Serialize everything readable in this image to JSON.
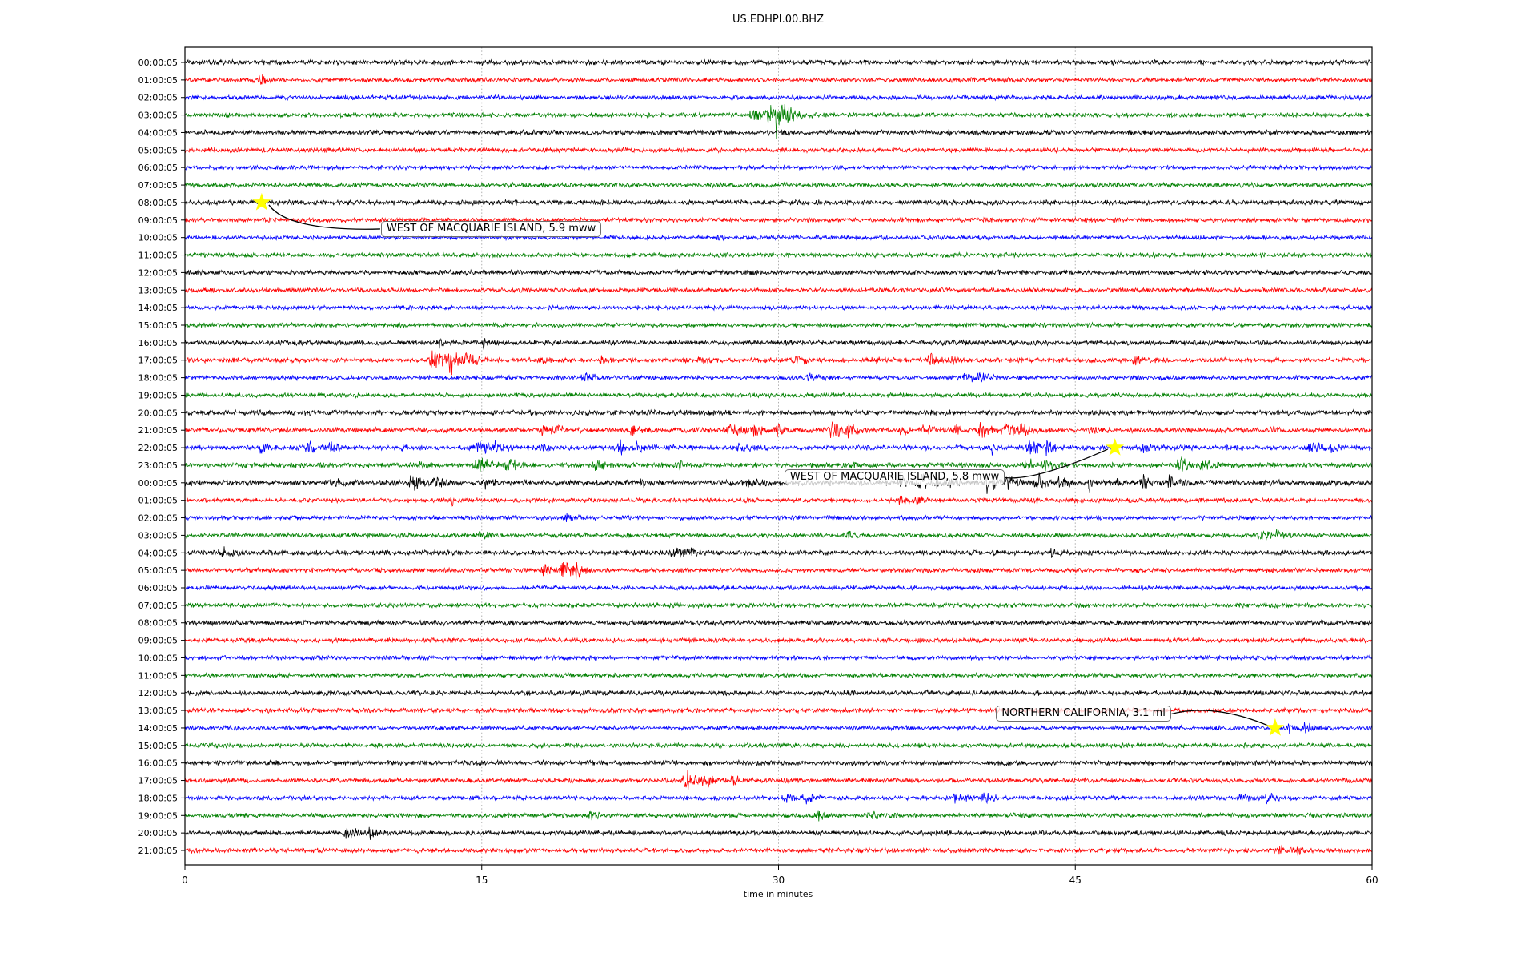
{
  "chart_data": {
    "type": "line",
    "variant": "helicorder-dayplot-seismogram",
    "title": "US.EDHPI.00.BHZ",
    "xlabel": "time in minutes",
    "x_range": [
      0,
      60
    ],
    "x_ticks": [
      0,
      15,
      30,
      45,
      60
    ],
    "grid": {
      "vertical_dotted_at": [
        15,
        30,
        45
      ],
      "color": "#b0b0b0"
    },
    "legend": "none",
    "trace_color_cycle": [
      "#000000",
      "#ff0000",
      "#0000ff",
      "#008000"
    ],
    "star_color": "#ffff00",
    "rows": [
      {
        "label": "00:00:05",
        "color": "#000000",
        "base": 2.4,
        "bursts": []
      },
      {
        "label": "01:00:05",
        "color": "#ff0000",
        "base": 2.2,
        "bursts": [
          {
            "m": 3.8,
            "a": 5,
            "d": 0.25
          }
        ]
      },
      {
        "label": "02:00:05",
        "color": "#0000ff",
        "base": 2.1,
        "bursts": []
      },
      {
        "label": "03:00:05",
        "color": "#008000",
        "base": 2.2,
        "bursts": [
          {
            "m": 28.8,
            "a": 7,
            "d": 0.5
          },
          {
            "m": 29.6,
            "a": 13,
            "d": 0.35
          },
          {
            "m": 29.9,
            "a": 22,
            "d": 0.06
          },
          {
            "m": 30.4,
            "a": 9,
            "d": 0.5
          }
        ]
      },
      {
        "label": "04:00:05",
        "color": "#000000",
        "base": 2.4,
        "bursts": [
          {
            "m": 38.6,
            "a": 6,
            "d": 0.05
          }
        ]
      },
      {
        "label": "05:00:05",
        "color": "#ff0000",
        "base": 2.2,
        "bursts": []
      },
      {
        "label": "06:00:05",
        "color": "#0000ff",
        "base": 2.1,
        "bursts": []
      },
      {
        "label": "07:00:05",
        "color": "#008000",
        "base": 2.2,
        "bursts": []
      },
      {
        "label": "08:00:05",
        "color": "#000000",
        "base": 2.4,
        "bursts": []
      },
      {
        "label": "09:00:05",
        "color": "#ff0000",
        "base": 2.2,
        "bursts": []
      },
      {
        "label": "10:00:05",
        "color": "#0000ff",
        "base": 2.1,
        "bursts": [
          {
            "m": 27.0,
            "a": 4,
            "d": 0.12
          }
        ]
      },
      {
        "label": "11:00:05",
        "color": "#008000",
        "base": 2.2,
        "bursts": []
      },
      {
        "label": "12:00:05",
        "color": "#000000",
        "base": 2.4,
        "bursts": []
      },
      {
        "label": "13:00:05",
        "color": "#ff0000",
        "base": 2.2,
        "bursts": []
      },
      {
        "label": "14:00:05",
        "color": "#0000ff",
        "base": 2.1,
        "bursts": []
      },
      {
        "label": "15:00:05",
        "color": "#008000",
        "base": 2.2,
        "bursts": []
      },
      {
        "label": "16:00:05",
        "color": "#000000",
        "base": 2.4,
        "bursts": [
          {
            "m": 12.9,
            "a": 3.5,
            "d": 0.2
          },
          {
            "m": 15.1,
            "a": 4,
            "d": 0.25
          }
        ]
      },
      {
        "label": "17:00:05",
        "color": "#ff0000",
        "base": 2.3,
        "bursts": [
          {
            "m": 12.6,
            "a": 9,
            "d": 0.5
          },
          {
            "m": 13.4,
            "a": 12,
            "d": 0.3
          },
          {
            "m": 14.3,
            "a": 7,
            "d": 0.4
          },
          {
            "m": 18,
            "a": 3,
            "d": 0.3
          },
          {
            "m": 21,
            "a": 3.5,
            "d": 0.25
          },
          {
            "m": 26,
            "a": 3,
            "d": 0.3
          },
          {
            "m": 31,
            "a": 5,
            "d": 0.35
          },
          {
            "m": 34.9,
            "a": 4,
            "d": 0.3
          },
          {
            "m": 37.7,
            "a": 5,
            "d": 0.35
          },
          {
            "m": 38.8,
            "a": 4,
            "d": 0.2
          },
          {
            "m": 48,
            "a": 4.5,
            "d": 0.3
          }
        ]
      },
      {
        "label": "18:00:05",
        "color": "#0000ff",
        "base": 2.1,
        "bursts": [
          {
            "m": 20.2,
            "a": 4.5,
            "d": 0.4
          },
          {
            "m": 31.6,
            "a": 4,
            "d": 0.3
          },
          {
            "m": 39.5,
            "a": 5.5,
            "d": 0.5
          },
          {
            "m": 40.3,
            "a": 4.5,
            "d": 0.3
          }
        ]
      },
      {
        "label": "19:00:05",
        "color": "#008000",
        "base": 2.2,
        "bursts": []
      },
      {
        "label": "20:00:05",
        "color": "#000000",
        "base": 2.5,
        "bursts": []
      },
      {
        "label": "21:00:05",
        "color": "#ff0000",
        "base": 2.5,
        "bursts": [
          {
            "m": 18.1,
            "a": 6,
            "d": 0.3
          },
          {
            "m": 18.8,
            "a": 4,
            "d": 0.25
          },
          {
            "m": 22.6,
            "a": 5,
            "d": 0.25
          },
          {
            "m": 27.6,
            "a": 6,
            "d": 0.5
          },
          {
            "m": 28.8,
            "a": 5,
            "d": 0.4
          },
          {
            "m": 30,
            "a": 4,
            "d": 0.3
          },
          {
            "m": 32.8,
            "a": 7,
            "d": 0.5
          },
          {
            "m": 33.6,
            "a": 5,
            "d": 0.3
          },
          {
            "m": 36.3,
            "a": 5,
            "d": 0.4
          },
          {
            "m": 37.5,
            "a": 6,
            "d": 0.45
          },
          {
            "m": 38.9,
            "a": 5,
            "d": 0.3
          },
          {
            "m": 40.3,
            "a": 6,
            "d": 0.5
          },
          {
            "m": 41.5,
            "a": 6,
            "d": 0.4
          },
          {
            "m": 42.3,
            "a": 5,
            "d": 0.3
          },
          {
            "m": 45.8,
            "a": 4,
            "d": 0.3
          },
          {
            "m": 55,
            "a": 3,
            "d": 0.3
          }
        ]
      },
      {
        "label": "22:00:05",
        "color": "#0000ff",
        "base": 2.4,
        "bursts": [
          {
            "m": 3.9,
            "a": 4,
            "d": 0.3
          },
          {
            "m": 6.3,
            "a": 5,
            "d": 0.5
          },
          {
            "m": 7.4,
            "a": 4,
            "d": 0.3
          },
          {
            "m": 11,
            "a": 5,
            "d": 0.15
          },
          {
            "m": 14.8,
            "a": 6,
            "d": 0.5
          },
          {
            "m": 15.7,
            "a": 5,
            "d": 0.3
          },
          {
            "m": 18.1,
            "a": 4,
            "d": 0.3
          },
          {
            "m": 22,
            "a": 5.5,
            "d": 0.4
          },
          {
            "m": 22.9,
            "a": 4,
            "d": 0.25
          },
          {
            "m": 28.1,
            "a": 5,
            "d": 0.3
          },
          {
            "m": 36.4,
            "a": 9,
            "d": 0.08
          },
          {
            "m": 40.8,
            "a": 6,
            "d": 0.1
          },
          {
            "m": 42.8,
            "a": 7,
            "d": 0.4
          },
          {
            "m": 43.6,
            "a": 6,
            "d": 0.3
          },
          {
            "m": 48.5,
            "a": 4,
            "d": 0.4
          },
          {
            "m": 57,
            "a": 5,
            "d": 0.4
          },
          {
            "m": 58,
            "a": 4,
            "d": 0.3
          }
        ]
      },
      {
        "label": "23:00:05",
        "color": "#008000",
        "base": 2.4,
        "bursts": [
          {
            "m": 12,
            "a": 4,
            "d": 0.3
          },
          {
            "m": 14.9,
            "a": 6,
            "d": 0.5
          },
          {
            "m": 16.4,
            "a": 6,
            "d": 0.4
          },
          {
            "m": 20.8,
            "a": 5,
            "d": 0.3
          },
          {
            "m": 25,
            "a": 4,
            "d": 0.3
          },
          {
            "m": 33.4,
            "a": 4,
            "d": 0.3
          },
          {
            "m": 42.6,
            "a": 6,
            "d": 0.4
          },
          {
            "m": 43.5,
            "a": 5,
            "d": 0.3
          },
          {
            "m": 50.3,
            "a": 12,
            "d": 0.25
          },
          {
            "m": 51.5,
            "a": 6,
            "d": 0.4
          }
        ]
      },
      {
        "label": "00:00:05",
        "color": "#000000",
        "base": 2.7,
        "bursts": [
          {
            "m": 7.5,
            "a": 5,
            "d": 0.3
          },
          {
            "m": 11.5,
            "a": 6,
            "d": 0.4
          },
          {
            "m": 12.7,
            "a": 5,
            "d": 0.3
          },
          {
            "m": 15.1,
            "a": 6,
            "d": 0.3
          },
          {
            "m": 23,
            "a": 5,
            "d": 0.25
          },
          {
            "m": 28.6,
            "a": 5,
            "d": 0.3
          },
          {
            "m": 36.2,
            "a": 8,
            "d": 0.25
          },
          {
            "m": 37.2,
            "a": 9,
            "d": 0.3
          },
          {
            "m": 38,
            "a": 16,
            "d": 0.05
          },
          {
            "m": 38.6,
            "a": 7,
            "d": 0.3
          },
          {
            "m": 40.6,
            "a": 9,
            "d": 0.35
          },
          {
            "m": 41.7,
            "a": 7,
            "d": 0.3
          },
          {
            "m": 43.1,
            "a": 9,
            "d": 0.4
          },
          {
            "m": 44.2,
            "a": 6,
            "d": 0.3
          },
          {
            "m": 45.7,
            "a": 14,
            "d": 0.07
          },
          {
            "m": 47.1,
            "a": 12,
            "d": 0.08
          },
          {
            "m": 48.4,
            "a": 8,
            "d": 0.25
          },
          {
            "m": 49.8,
            "a": 6,
            "d": 0.3
          }
        ]
      },
      {
        "label": "01:00:05",
        "color": "#ff0000",
        "base": 2.2,
        "bursts": [
          {
            "m": 13.5,
            "a": 6,
            "d": 0.08
          },
          {
            "m": 36.2,
            "a": 7,
            "d": 0.3
          },
          {
            "m": 37,
            "a": 5,
            "d": 0.25
          },
          {
            "m": 43,
            "a": 4,
            "d": 0.15
          }
        ]
      },
      {
        "label": "02:00:05",
        "color": "#0000ff",
        "base": 2.1,
        "bursts": [
          {
            "m": 19.3,
            "a": 4,
            "d": 0.25
          }
        ]
      },
      {
        "label": "03:00:05",
        "color": "#008000",
        "base": 2.2,
        "bursts": [
          {
            "m": 15,
            "a": 4,
            "d": 0.3
          },
          {
            "m": 33.4,
            "a": 3.5,
            "d": 0.3
          },
          {
            "m": 54.3,
            "a": 4.5,
            "d": 0.5
          },
          {
            "m": 55.2,
            "a": 4,
            "d": 0.3
          }
        ]
      },
      {
        "label": "04:00:05",
        "color": "#000000",
        "base": 2.4,
        "bursts": [
          {
            "m": 2,
            "a": 4,
            "d": 0.5
          },
          {
            "m": 24.8,
            "a": 4,
            "d": 0.5
          },
          {
            "m": 25.6,
            "a": 3.5,
            "d": 0.3
          },
          {
            "m": 43.8,
            "a": 3.5,
            "d": 0.3
          }
        ]
      },
      {
        "label": "05:00:05",
        "color": "#ff0000",
        "base": 2.2,
        "bursts": [
          {
            "m": 18.2,
            "a": 5,
            "d": 0.3
          },
          {
            "m": 19.2,
            "a": 8,
            "d": 0.4
          },
          {
            "m": 19.8,
            "a": 5,
            "d": 0.3
          }
        ]
      },
      {
        "label": "06:00:05",
        "color": "#0000ff",
        "base": 2.1,
        "bursts": []
      },
      {
        "label": "07:00:05",
        "color": "#008000",
        "base": 2.2,
        "bursts": []
      },
      {
        "label": "08:00:05",
        "color": "#000000",
        "base": 2.4,
        "bursts": []
      },
      {
        "label": "09:00:05",
        "color": "#ff0000",
        "base": 2.2,
        "bursts": []
      },
      {
        "label": "10:00:05",
        "color": "#0000ff",
        "base": 2.1,
        "bursts": []
      },
      {
        "label": "11:00:05",
        "color": "#008000",
        "base": 2.2,
        "bursts": []
      },
      {
        "label": "12:00:05",
        "color": "#000000",
        "base": 2.4,
        "bursts": []
      },
      {
        "label": "13:00:05",
        "color": "#ff0000",
        "base": 2.2,
        "bursts": []
      },
      {
        "label": "14:00:05",
        "color": "#0000ff",
        "base": 2.1,
        "bursts": [
          {
            "m": 55.9,
            "a": 7,
            "d": 0.4
          },
          {
            "m": 56.6,
            "a": 5,
            "d": 0.3
          }
        ]
      },
      {
        "label": "15:00:05",
        "color": "#008000",
        "base": 2.2,
        "bursts": []
      },
      {
        "label": "16:00:05",
        "color": "#000000",
        "base": 2.4,
        "bursts": []
      },
      {
        "label": "17:00:05",
        "color": "#ff0000",
        "base": 2.2,
        "bursts": [
          {
            "m": 25.4,
            "a": 8,
            "d": 0.4
          },
          {
            "m": 26.3,
            "a": 6,
            "d": 0.3
          },
          {
            "m": 27.7,
            "a": 5,
            "d": 0.25
          }
        ]
      },
      {
        "label": "18:00:05",
        "color": "#0000ff",
        "base": 2.1,
        "bursts": [
          {
            "m": 30.4,
            "a": 5,
            "d": 0.3
          },
          {
            "m": 31.4,
            "a": 5,
            "d": 0.35
          },
          {
            "m": 39,
            "a": 5,
            "d": 0.3
          },
          {
            "m": 40.4,
            "a": 5,
            "d": 0.35
          },
          {
            "m": 53.4,
            "a": 4,
            "d": 0.25
          },
          {
            "m": 54.7,
            "a": 6,
            "d": 0.3
          }
        ]
      },
      {
        "label": "19:00:05",
        "color": "#008000",
        "base": 2.2,
        "bursts": [
          {
            "m": 20.5,
            "a": 5,
            "d": 0.3
          },
          {
            "m": 32,
            "a": 4,
            "d": 0.25
          },
          {
            "m": 34.8,
            "a": 4,
            "d": 0.5
          }
        ]
      },
      {
        "label": "20:00:05",
        "color": "#000000",
        "base": 2.4,
        "bursts": [
          {
            "m": 8.3,
            "a": 5,
            "d": 0.5
          },
          {
            "m": 9.4,
            "a": 4,
            "d": 0.3
          }
        ]
      },
      {
        "label": "21:00:05",
        "color": "#ff0000",
        "base": 2.2,
        "bursts": [
          {
            "m": 55.3,
            "a": 5,
            "d": 0.3
          },
          {
            "m": 56.2,
            "a": 6,
            "d": 0.3
          }
        ]
      }
    ],
    "events": [
      {
        "label": "WEST OF MACQUARIE ISLAND, 5.9 mww",
        "star": {
          "row": 8,
          "minute": 3.88
        },
        "box": {
          "minute": 9.91,
          "row": 9.51
        },
        "ctrl": {
          "minute": 5.2,
          "row": 9.65
        },
        "attach": "left"
      },
      {
        "label": "WEST OF MACQUARIE ISLAND, 5.8 mww",
        "star": {
          "row": 22,
          "minute": 47.0
        },
        "box": {
          "minute": 30.3,
          "row": 23.71
        },
        "ctrl": {
          "minute": 43.0,
          "row": 23.9
        },
        "attach": "right"
      },
      {
        "label": "NORTHERN CALIFORNIA, 3.1 ml",
        "star": {
          "row": 38,
          "minute": 55.1
        },
        "box": {
          "minute": 41.0,
          "row": 37.2
        },
        "ctrl": {
          "minute": 52.0,
          "row": 36.58
        },
        "attach": "right"
      }
    ]
  }
}
